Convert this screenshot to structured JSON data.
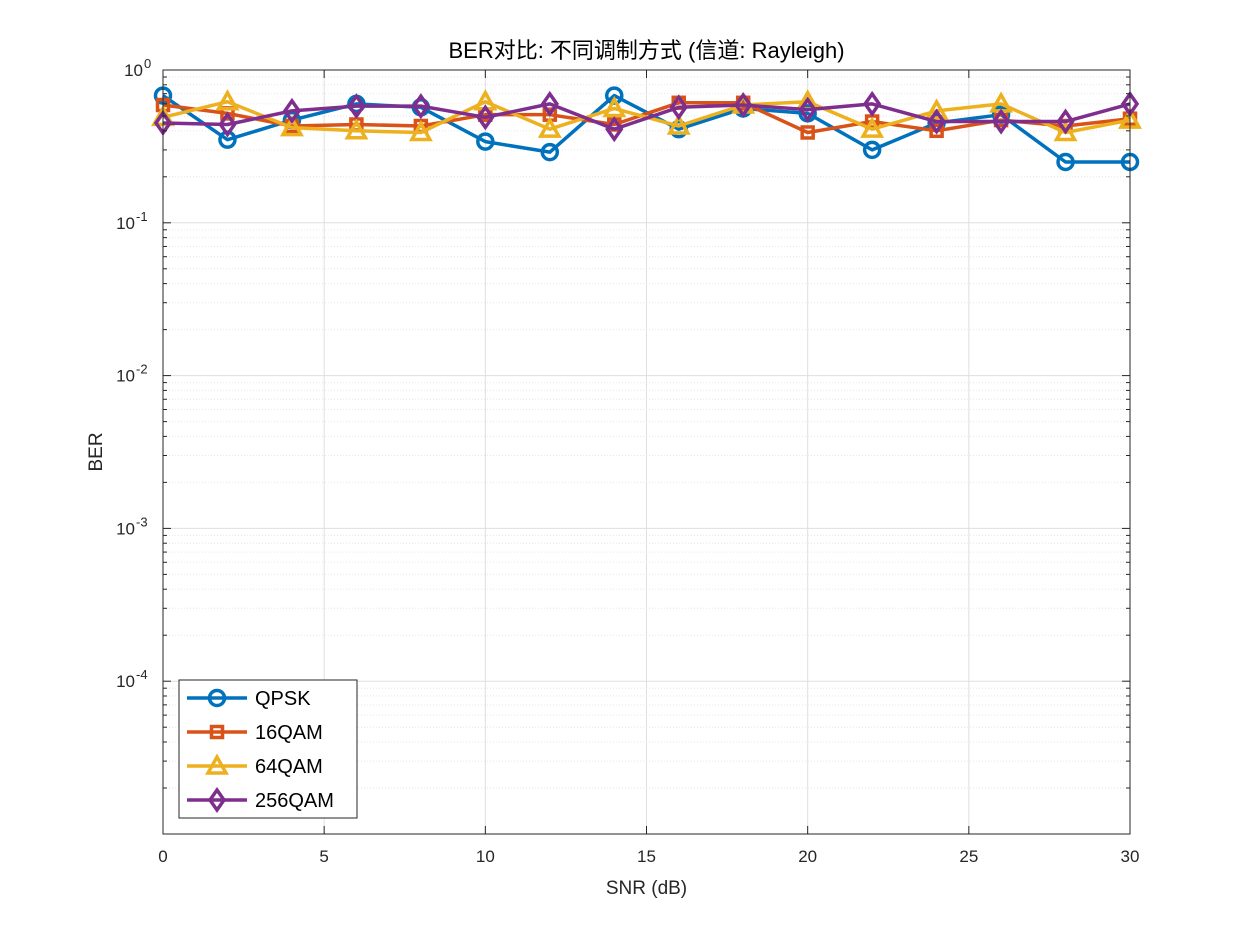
{
  "chart_data": {
    "type": "line",
    "title": "BER对比: 不同调制方式 (信道: Rayleigh)",
    "xlabel": "SNR (dB)",
    "ylabel": "BER",
    "xlim": [
      0,
      30
    ],
    "ylim": [
      1e-05,
      1
    ],
    "yscale": "log",
    "grid": true,
    "legend_position": "bottom-left",
    "x_ticks": [
      "0",
      "5",
      "10",
      "15",
      "20",
      "25",
      "30"
    ],
    "y_ticks": [
      {
        "base": "10",
        "exp": "0"
      },
      {
        "base": "10",
        "exp": "-1"
      },
      {
        "base": "10",
        "exp": "-2"
      },
      {
        "base": "10",
        "exp": "-3"
      },
      {
        "base": "10",
        "exp": "-4"
      }
    ],
    "x": [
      0,
      2,
      4,
      6,
      8,
      10,
      12,
      14,
      16,
      18,
      20,
      22,
      24,
      26,
      28,
      30
    ],
    "series": [
      {
        "name": "QPSK",
        "color": "#0072BD",
        "marker": "circle",
        "values": [
          0.68,
          0.35,
          0.47,
          0.6,
          0.57,
          0.34,
          0.29,
          0.68,
          0.41,
          0.56,
          0.52,
          0.3,
          0.45,
          0.51,
          0.25,
          0.25
        ]
      },
      {
        "name": "16QAM",
        "color": "#D95319",
        "marker": "square",
        "values": [
          0.59,
          0.52,
          0.43,
          0.44,
          0.43,
          0.51,
          0.51,
          0.44,
          0.61,
          0.61,
          0.39,
          0.46,
          0.4,
          0.47,
          0.43,
          0.48
        ]
      },
      {
        "name": "64QAM",
        "color": "#EDB120",
        "marker": "triangle",
        "values": [
          0.49,
          0.62,
          0.42,
          0.4,
          0.39,
          0.62,
          0.41,
          0.56,
          0.43,
          0.59,
          0.62,
          0.41,
          0.54,
          0.6,
          0.39,
          0.47
        ]
      },
      {
        "name": "256QAM",
        "color": "#7E2F8E",
        "marker": "diamond",
        "values": [
          0.45,
          0.44,
          0.54,
          0.58,
          0.58,
          0.49,
          0.6,
          0.41,
          0.57,
          0.59,
          0.55,
          0.6,
          0.46,
          0.46,
          0.46,
          0.6
        ]
      }
    ]
  }
}
